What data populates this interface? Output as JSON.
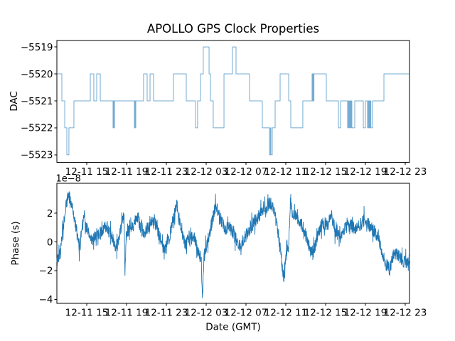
{
  "figure": {
    "title": "APOLLO GPS Clock Properties",
    "background": "#ffffff",
    "spine_color": "#000000",
    "text_color": "#000000",
    "line_color": "#1f77b4"
  },
  "chart_data": [
    {
      "id": "dac",
      "type": "line",
      "step": true,
      "title": "",
      "xlabel": "",
      "ylabel": "DAC",
      "grid": false,
      "legend": null,
      "line_color": "#1f77b4",
      "line_opacity": 0.62,
      "xlim": [
        12.0,
        47.43
      ],
      "ylim": [
        -5523.28,
        -5518.76
      ],
      "x_units": "hours since 12-11 00:00 GMT",
      "x_ticks": [
        15,
        19,
        23,
        27,
        31,
        35,
        39,
        43,
        47
      ],
      "x_tick_labels": [
        "12-11 15",
        "12-11 19",
        "12-11 23",
        "12-12 03",
        "12-12 07",
        "12-12 11",
        "12-12 15",
        "12-12 19",
        "12-12 23"
      ],
      "y_ticks": [
        -5519,
        -5520,
        -5521,
        -5522,
        -5523
      ],
      "y_tick_labels": [
        "−5519",
        "−5520",
        "−5521",
        "−5522",
        "−5523"
      ],
      "series_step_points": [
        [
          12.0,
          -5520
        ],
        [
          12.5,
          -5521
        ],
        [
          12.79,
          -5522
        ],
        [
          13.0,
          -5523
        ],
        [
          13.21,
          -5522
        ],
        [
          13.71,
          -5521
        ],
        [
          15.36,
          -5520
        ],
        [
          15.71,
          -5521
        ],
        [
          16.0,
          -5520
        ],
        [
          16.36,
          -5521
        ],
        [
          17.64,
          -5522
        ],
        [
          17.7,
          -5521
        ],
        [
          17.74,
          -5522
        ],
        [
          17.79,
          -5521
        ],
        [
          19.79,
          -5522
        ],
        [
          19.85,
          -5521
        ],
        [
          19.88,
          -5522
        ],
        [
          19.93,
          -5521
        ],
        [
          20.71,
          -5520
        ],
        [
          21.07,
          -5521
        ],
        [
          21.36,
          -5520
        ],
        [
          21.71,
          -5521
        ],
        [
          23.71,
          -5520
        ],
        [
          25.0,
          -5521
        ],
        [
          25.93,
          -5522
        ],
        [
          26.14,
          -5521
        ],
        [
          26.43,
          -5520
        ],
        [
          26.71,
          -5519
        ],
        [
          27.29,
          -5520
        ],
        [
          27.43,
          -5521
        ],
        [
          27.71,
          -5522
        ],
        [
          28.79,
          -5520
        ],
        [
          29.64,
          -5519
        ],
        [
          30.0,
          -5520
        ],
        [
          31.36,
          -5521
        ],
        [
          32.64,
          -5522
        ],
        [
          33.36,
          -5523
        ],
        [
          33.45,
          -5522
        ],
        [
          33.5,
          -5523
        ],
        [
          33.64,
          -5522
        ],
        [
          33.93,
          -5521
        ],
        [
          34.43,
          -5520
        ],
        [
          35.29,
          -5521
        ],
        [
          35.5,
          -5522
        ],
        [
          36.71,
          -5521
        ],
        [
          37.64,
          -5520
        ],
        [
          37.7,
          -5521
        ],
        [
          37.74,
          -5520
        ],
        [
          37.79,
          -5521
        ],
        [
          37.83,
          -5520
        ],
        [
          39.07,
          -5521
        ],
        [
          40.29,
          -5522
        ],
        [
          40.5,
          -5521
        ],
        [
          41.21,
          -5522
        ],
        [
          41.29,
          -5521
        ],
        [
          41.36,
          -5522
        ],
        [
          41.43,
          -5521
        ],
        [
          41.5,
          -5522
        ],
        [
          41.57,
          -5521
        ],
        [
          41.64,
          -5522
        ],
        [
          41.93,
          -5521
        ],
        [
          42.79,
          -5522
        ],
        [
          43.0,
          -5521
        ],
        [
          43.21,
          -5522
        ],
        [
          43.29,
          -5521
        ],
        [
          43.33,
          -5522
        ],
        [
          43.4,
          -5521
        ],
        [
          43.45,
          -5522
        ],
        [
          43.5,
          -5521
        ],
        [
          43.55,
          -5522
        ],
        [
          43.71,
          -5521
        ],
        [
          44.86,
          -5520
        ],
        [
          47.43,
          -5520
        ]
      ]
    },
    {
      "id": "phase",
      "type": "line",
      "step": false,
      "title": "",
      "xlabel": "Date (GMT)",
      "ylabel": "Phase (s)",
      "offset_label": "1e−8",
      "grid": false,
      "legend": null,
      "line_color": "#1f77b4",
      "line_opacity": 1.0,
      "xlim": [
        12.0,
        47.43
      ],
      "ylim": [
        -4.28,
        4.08
      ],
      "y_units_scale": "1e-8 s",
      "x_units": "hours since 12-11 00:00 GMT",
      "x_ticks": [
        15,
        19,
        23,
        27,
        31,
        35,
        39,
        43,
        47
      ],
      "x_tick_labels": [
        "12-11 15",
        "12-11 19",
        "12-11 23",
        "12-12 03",
        "12-12 07",
        "12-12 11",
        "12-12 15",
        "12-12 19",
        "12-12 23"
      ],
      "y_ticks": [
        2,
        0,
        -2,
        -4
      ],
      "y_tick_labels": [
        "2",
        "0",
        "−2",
        "−4"
      ],
      "noise_amp": 0.45,
      "noise_spike_prob": 0.1,
      "noise_spike_gain": 2.2,
      "samples": 1700,
      "noise_seed": 42,
      "series_keypoints": [
        [
          12.0,
          -1.5
        ],
        [
          12.3,
          -0.6
        ],
        [
          12.6,
          0.8
        ],
        [
          12.9,
          2.4
        ],
        [
          13.15,
          3.3
        ],
        [
          13.4,
          2.9
        ],
        [
          13.7,
          1.9
        ],
        [
          14.0,
          0.6
        ],
        [
          14.25,
          -0.4
        ],
        [
          14.5,
          0.9
        ],
        [
          14.7,
          2.1
        ],
        [
          14.9,
          1.2
        ],
        [
          15.15,
          0.6
        ],
        [
          15.5,
          0.1
        ],
        [
          15.9,
          0.5
        ],
        [
          16.3,
          0.5
        ],
        [
          16.7,
          0.9
        ],
        [
          17.0,
          1.2
        ],
        [
          17.3,
          0.6
        ],
        [
          17.6,
          0.2
        ],
        [
          17.9,
          -0.7
        ],
        [
          18.2,
          0.2
        ],
        [
          18.5,
          1.0
        ],
        [
          18.75,
          1.9
        ],
        [
          18.84,
          -2.3
        ],
        [
          18.95,
          0.5
        ],
        [
          19.3,
          0.8
        ],
        [
          19.7,
          1.2
        ],
        [
          20.05,
          1.9
        ],
        [
          20.4,
          1.1
        ],
        [
          20.8,
          0.6
        ],
        [
          21.2,
          1.1
        ],
        [
          21.8,
          1.5
        ],
        [
          22.2,
          0.6
        ],
        [
          22.8,
          -0.6
        ],
        [
          23.3,
          0.3
        ],
        [
          23.75,
          1.8
        ],
        [
          24.05,
          2.6
        ],
        [
          24.4,
          1.2
        ],
        [
          24.9,
          -0.3
        ],
        [
          25.4,
          0.6
        ],
        [
          25.8,
          0.3
        ],
        [
          26.2,
          -0.8
        ],
        [
          26.5,
          -1.2
        ],
        [
          26.62,
          -3.85
        ],
        [
          26.8,
          -0.9
        ],
        [
          27.1,
          -0.2
        ],
        [
          27.6,
          1.5
        ],
        [
          28.0,
          2.6
        ],
        [
          28.4,
          1.7
        ],
        [
          28.9,
          0.9
        ],
        [
          29.4,
          1.0
        ],
        [
          29.9,
          0.3
        ],
        [
          30.4,
          -0.3
        ],
        [
          30.9,
          0.3
        ],
        [
          31.4,
          0.9
        ],
        [
          31.9,
          1.5
        ],
        [
          32.4,
          1.9
        ],
        [
          32.9,
          2.2
        ],
        [
          33.4,
          2.8
        ],
        [
          33.75,
          2.3
        ],
        [
          34.1,
          1.2
        ],
        [
          34.5,
          -0.8
        ],
        [
          34.75,
          -2.4
        ],
        [
          35.0,
          -1.2
        ],
        [
          35.3,
          -0.2
        ],
        [
          35.47,
          3.2
        ],
        [
          35.65,
          2.0
        ],
        [
          36.0,
          1.8
        ],
        [
          36.4,
          1.5
        ],
        [
          36.9,
          0.7
        ],
        [
          37.3,
          -0.3
        ],
        [
          37.7,
          -0.9
        ],
        [
          38.2,
          0.5
        ],
        [
          38.7,
          1.3
        ],
        [
          39.2,
          1.2
        ],
        [
          39.6,
          1.8
        ],
        [
          40.0,
          0.7
        ],
        [
          40.5,
          0.3
        ],
        [
          41.0,
          1.0
        ],
        [
          41.5,
          1.2
        ],
        [
          42.0,
          0.8
        ],
        [
          42.5,
          1.2
        ],
        [
          43.0,
          1.6
        ],
        [
          43.5,
          1.0
        ],
        [
          44.0,
          0.7
        ],
        [
          44.5,
          -0.3
        ],
        [
          45.0,
          -1.5
        ],
        [
          45.45,
          -1.9
        ],
        [
          45.9,
          -0.7
        ],
        [
          46.4,
          -1.0
        ],
        [
          46.9,
          -1.4
        ],
        [
          47.43,
          -1.3
        ]
      ]
    }
  ]
}
